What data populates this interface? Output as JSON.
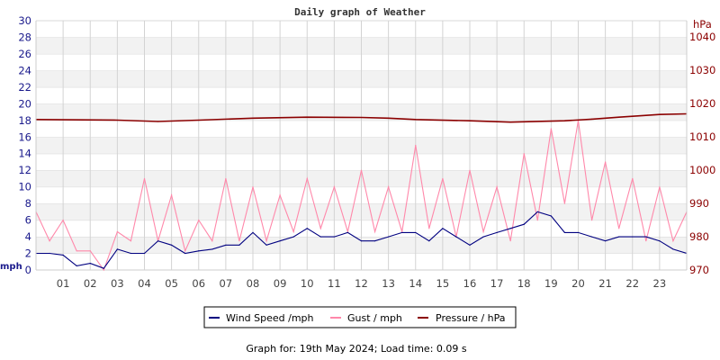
{
  "chart_data": {
    "type": "line",
    "title": "Daily graph of Weather",
    "footer": "Graph for: 19th May 2024; Load time: 0.09 s",
    "left_axis": {
      "label": "mph",
      "range": [
        0,
        30
      ],
      "ticks": [
        "0",
        "2",
        "4",
        "6",
        "8",
        "10",
        "12",
        "14",
        "16",
        "18",
        "20",
        "22",
        "24",
        "26",
        "28",
        "30"
      ],
      "color": "#1a1a8c"
    },
    "right_axis": {
      "label": "hPa",
      "range": [
        970,
        1045
      ],
      "ticks": [
        "970",
        "980",
        "990",
        "1000",
        "1010",
        "1020",
        "1030",
        "1040"
      ],
      "color": "#8b0000"
    },
    "x_axis": {
      "range": [
        0,
        24
      ],
      "ticks": [
        "01",
        "02",
        "03",
        "04",
        "05",
        "06",
        "07",
        "08",
        "09",
        "10",
        "11",
        "12",
        "13",
        "14",
        "15",
        "16",
        "17",
        "18",
        "19",
        "20",
        "21",
        "22",
        "23"
      ]
    },
    "grid": true,
    "legend_position": "bottom",
    "series": [
      {
        "name": "Wind Speed /mph",
        "axis": "left",
        "color": "#000080",
        "x": [
          0,
          0.5,
          1,
          1.5,
          2,
          2.5,
          3,
          3.5,
          4,
          4.5,
          5,
          5.5,
          6,
          6.5,
          7,
          7.5,
          8,
          8.5,
          9,
          9.5,
          10,
          10.5,
          11,
          11.5,
          12,
          12.5,
          13,
          13.5,
          14,
          14.5,
          15,
          15.5,
          16,
          16.5,
          17,
          17.5,
          18,
          18.5,
          19,
          19.5,
          20,
          20.5,
          21,
          21.5,
          22,
          22.5,
          23,
          23.5,
          24
        ],
        "values": [
          2,
          2,
          1.8,
          0.5,
          0.8,
          0.2,
          2.5,
          2,
          2,
          3.5,
          3,
          2,
          2.3,
          2.5,
          3,
          3,
          4.5,
          3,
          3.5,
          4,
          5,
          4,
          4,
          4.5,
          3.5,
          3.5,
          4,
          4.5,
          4.5,
          3.5,
          5,
          4,
          3,
          4,
          4.5,
          5,
          5.5,
          7,
          6.5,
          4.5,
          4.5,
          4,
          3.5,
          4,
          4,
          4,
          3.5,
          2.5,
          2
        ]
      },
      {
        "name": "Gust / mph",
        "axis": "left",
        "color": "#ff88aa",
        "x": [
          0,
          0.5,
          1,
          1.5,
          2,
          2.5,
          3,
          3.5,
          4,
          4.5,
          5,
          5.5,
          6,
          6.5,
          7,
          7.5,
          8,
          8.5,
          9,
          9.5,
          10,
          10.5,
          11,
          11.5,
          12,
          12.5,
          13,
          13.5,
          14,
          14.5,
          15,
          15.5,
          16,
          16.5,
          17,
          17.5,
          18,
          18.5,
          19,
          19.5,
          20,
          20.5,
          21,
          21.5,
          22,
          22.5,
          23,
          23.5,
          24
        ],
        "values": [
          7,
          3.5,
          6,
          2.3,
          2.3,
          0,
          4.6,
          3.5,
          11,
          3.5,
          9,
          2.3,
          6,
          3.5,
          11,
          3.5,
          10,
          3.5,
          9,
          4.6,
          11,
          5,
          10,
          4.6,
          12,
          4.6,
          10,
          4.6,
          15,
          5,
          11,
          4,
          12,
          4.6,
          10,
          3.5,
          14,
          6,
          17,
          8,
          18,
          6,
          13,
          5,
          11,
          3.5,
          10,
          3.5,
          7
        ]
      },
      {
        "name": "Pressure / hPa",
        "axis": "right",
        "color": "#8b0000",
        "x": [
          0,
          3,
          4.5,
          6,
          8,
          10,
          12,
          13,
          14,
          16,
          17.5,
          19.5,
          20.5,
          21.5,
          23,
          24
        ],
        "values": [
          1015.2,
          1015,
          1014.6,
          1015,
          1015.6,
          1015.9,
          1015.8,
          1015.6,
          1015.2,
          1014.8,
          1014.4,
          1014.8,
          1015.3,
          1015.9,
          1016.7,
          1016.9
        ]
      }
    ]
  }
}
